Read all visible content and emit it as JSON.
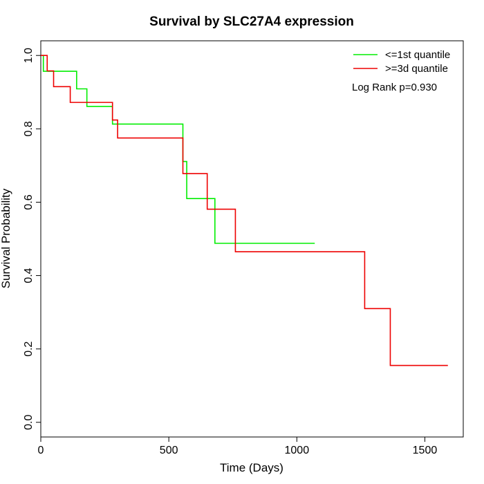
{
  "chart_data": {
    "type": "line",
    "title": "Survival by SLC27A4 expression",
    "xlabel": "Time (Days)",
    "ylabel": "Survival Probability",
    "xlim": [
      0,
      1650
    ],
    "ylim": [
      -0.04,
      1.04
    ],
    "xticks": [
      0,
      500,
      1000,
      1500
    ],
    "yticks": [
      0.0,
      0.2,
      0.4,
      0.6,
      0.8,
      1.0
    ],
    "xtick_labels": [
      "0",
      "500",
      "1000",
      "1500"
    ],
    "ytick_labels": [
      "0.0",
      "0.2",
      "0.4",
      "0.6",
      "0.8",
      "1.0"
    ],
    "grid": false,
    "legend_position": "top-right",
    "annotation": "Log Rank p=0.930",
    "series": [
      {
        "name": "<=1st quantile",
        "color": "#00ee00",
        "step": true,
        "x": [
          0,
          10,
          140,
          180,
          280,
          555,
          570,
          680,
          1070
        ],
        "y": [
          1.0,
          0.957,
          0.909,
          0.861,
          0.813,
          0.711,
          0.61,
          0.488,
          0.488
        ]
      },
      {
        "name": ">=3d quantile",
        "color": "#ee0000",
        "step": true,
        "x": [
          0,
          25,
          50,
          115,
          280,
          300,
          555,
          650,
          760,
          1265,
          1365,
          1590
        ],
        "y": [
          1.0,
          0.958,
          0.915,
          0.872,
          0.824,
          0.775,
          0.678,
          0.581,
          0.465,
          0.31,
          0.155,
          0.155
        ]
      }
    ]
  }
}
